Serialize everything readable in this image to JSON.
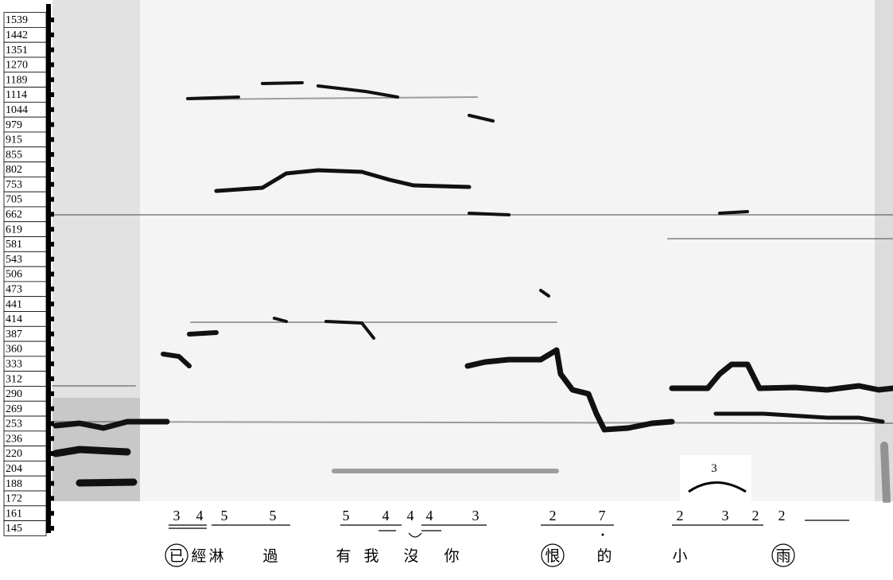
{
  "frequency_labels": [
    "1539",
    "1442",
    "1351",
    "1270",
    "1189",
    "1114",
    "1044",
    "979",
    "915",
    "855",
    "802",
    "753",
    "705",
    "662",
    "619",
    "581",
    "543",
    "506",
    "473",
    "441",
    "414",
    "387",
    "360",
    "333",
    "312",
    "290",
    "269",
    "253",
    "236",
    "220",
    "204",
    "188",
    "172",
    "161",
    "145"
  ],
  "notation": [
    "3",
    "4",
    "5",
    "5",
    "5",
    "4",
    "4",
    "4",
    "3",
    "2",
    "7",
    "2",
    "3",
    "2",
    "2"
  ],
  "triplet_mark": "3",
  "lyrics": [
    "已",
    "經",
    "淋",
    "過",
    "有",
    "我",
    "沒",
    "你",
    "恨",
    "的",
    "小",
    "雨"
  ]
}
